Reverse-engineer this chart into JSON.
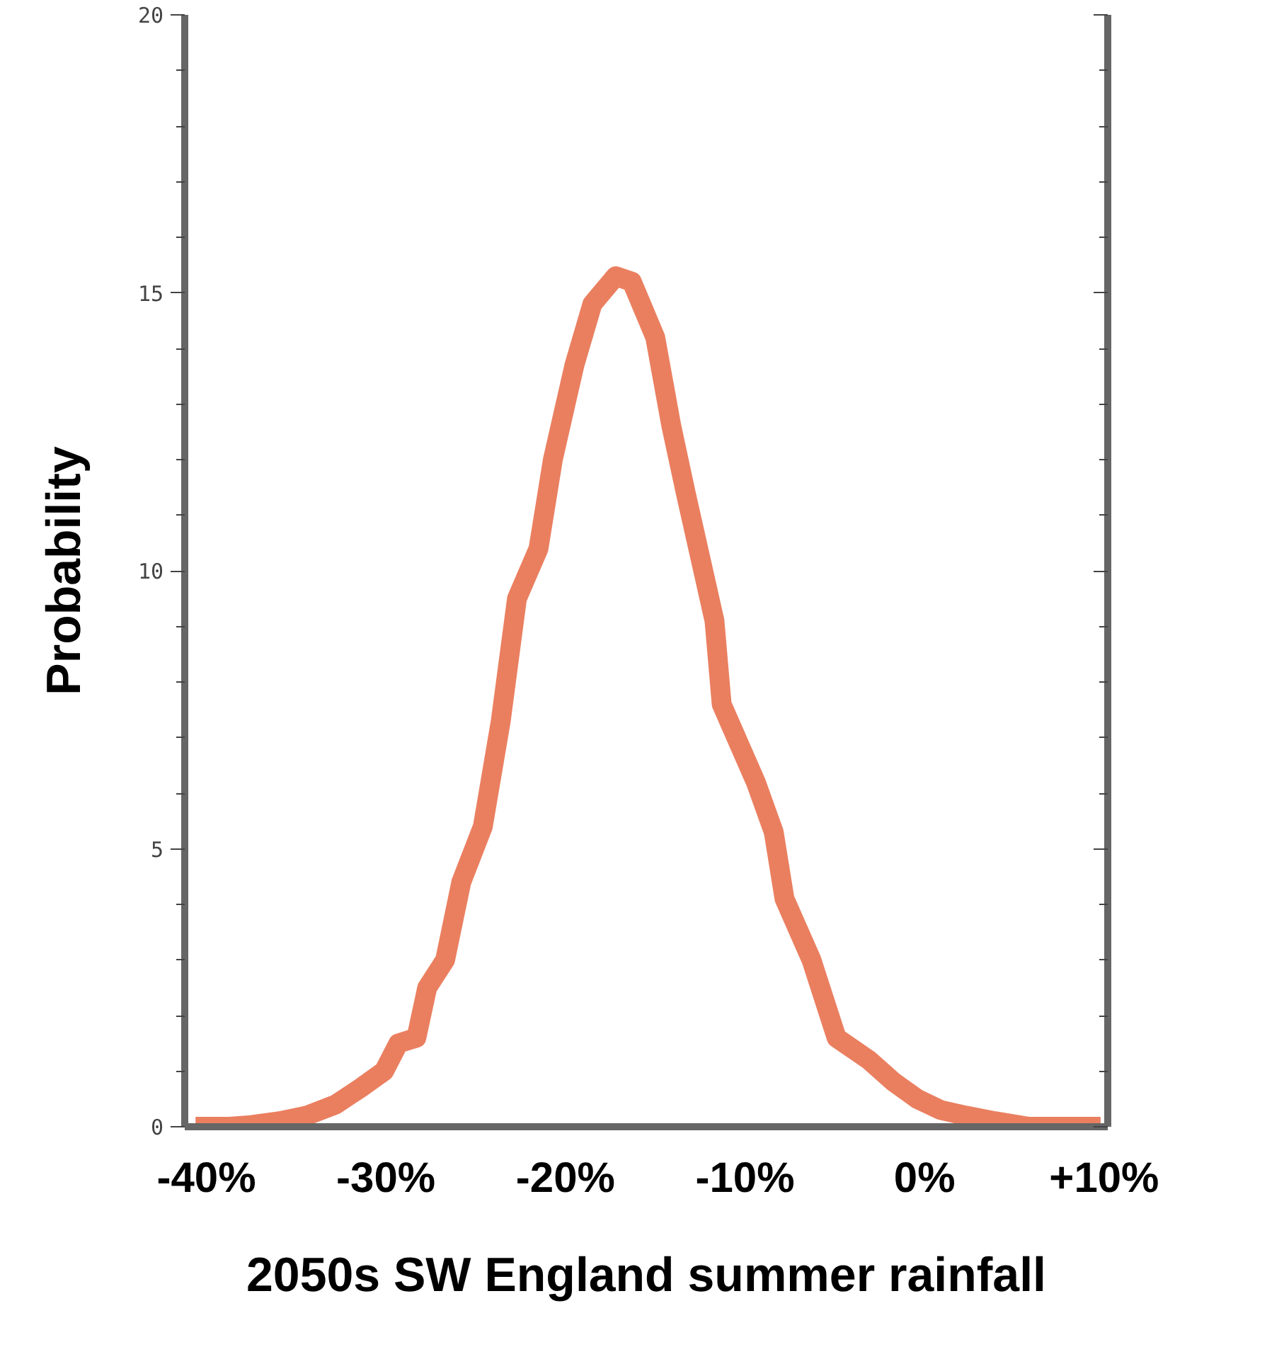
{
  "chart_data": {
    "type": "line",
    "xlabel": "2050s SW England summer rainfall",
    "ylabel": "Probability",
    "x": [
      -40.6,
      -38.7,
      -37.5,
      -35.9,
      -34.4,
      -32.8,
      -31.4,
      -30.1,
      -29.3,
      -28.3,
      -27.7,
      -26.7,
      -25.8,
      -24.6,
      -23.6,
      -22.7,
      -21.5,
      -20.7,
      -19.5,
      -18.5,
      -17.2,
      -16.3,
      -15.0,
      -14.1,
      -13.3,
      -11.7,
      -11.3,
      -9.4,
      -8.4,
      -7.8,
      -6.3,
      -4.9,
      -3.1,
      -1.7,
      -0.4,
      0.9,
      2.3,
      3.9,
      5.8,
      7.8,
      9.8
    ],
    "series": [
      {
        "color": "#e8714f",
        "values": [
          0,
          0,
          0.03,
          0.1,
          0.2,
          0.4,
          0.7,
          1.0,
          1.5,
          1.6,
          2.5,
          3.0,
          4.4,
          5.4,
          7.3,
          9.5,
          10.4,
          12.0,
          13.7,
          14.8,
          15.3,
          15.2,
          14.2,
          12.6,
          11.4,
          9.1,
          7.6,
          6.2,
          5.3,
          4.1,
          3.0,
          1.6,
          1.2,
          0.8,
          0.5,
          0.3,
          0.2,
          0.1,
          0,
          0,
          0
        ]
      }
    ],
    "xlim": [
      -41.2,
      10.2
    ],
    "ylim": [
      0,
      20
    ],
    "xticks": [
      {
        "value": -40,
        "label": "-40%"
      },
      {
        "value": -30,
        "label": "-30%"
      },
      {
        "value": -20,
        "label": "-20%"
      },
      {
        "value": -10,
        "label": "-10%"
      },
      {
        "value": 0,
        "label": "0%"
      },
      {
        "value": 10,
        "label": "+10%"
      }
    ],
    "yticks": [
      0,
      5,
      10,
      15,
      20
    ],
    "grid": false,
    "marker": "none",
    "line_style": "solid"
  }
}
